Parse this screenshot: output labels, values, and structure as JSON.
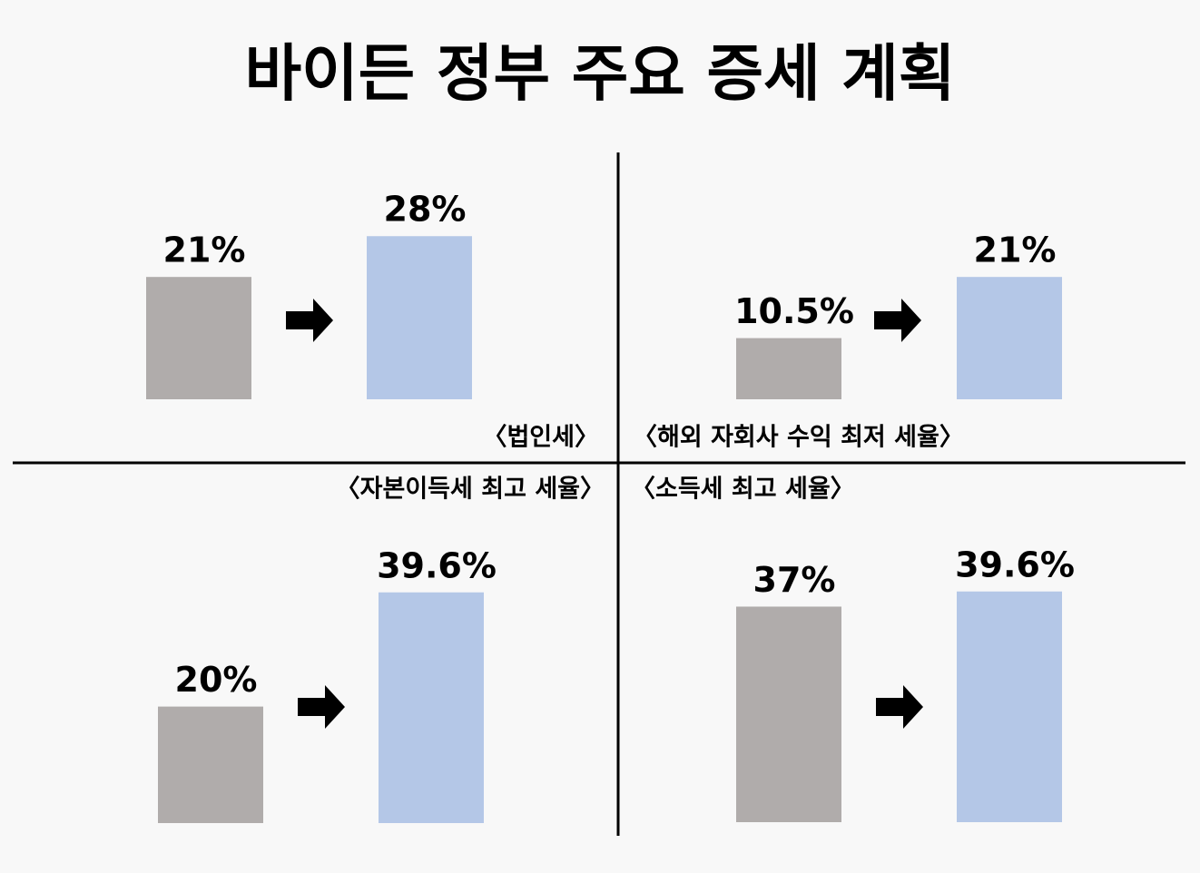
{
  "title": "바이든 정부 주요 증세 계획",
  "chart_data": [
    {
      "type": "bar",
      "title": "〈법인세〉",
      "values": [
        21,
        28
      ],
      "value_labels": [
        "21%",
        "28%"
      ],
      "colors": [
        "#b0acab",
        "#b4c7e7"
      ]
    },
    {
      "type": "bar",
      "title": "〈해외 자회사 수익 최저 세율〉",
      "values": [
        10.5,
        21
      ],
      "value_labels": [
        "10.5%",
        "21%"
      ],
      "colors": [
        "#b0acab",
        "#b4c7e7"
      ]
    },
    {
      "type": "bar",
      "title": "〈자본이득세 최고 세율〉",
      "values": [
        20,
        39.6
      ],
      "value_labels": [
        "20%",
        "39.6%"
      ],
      "colors": [
        "#b0acab",
        "#b4c7e7"
      ]
    },
    {
      "type": "bar",
      "title": "〈소득세 최고 세율〉",
      "values": [
        37,
        39.6
      ],
      "value_labels": [
        "37%",
        "39.6%"
      ],
      "colors": [
        "#b0acab",
        "#b4c7e7"
      ]
    }
  ]
}
